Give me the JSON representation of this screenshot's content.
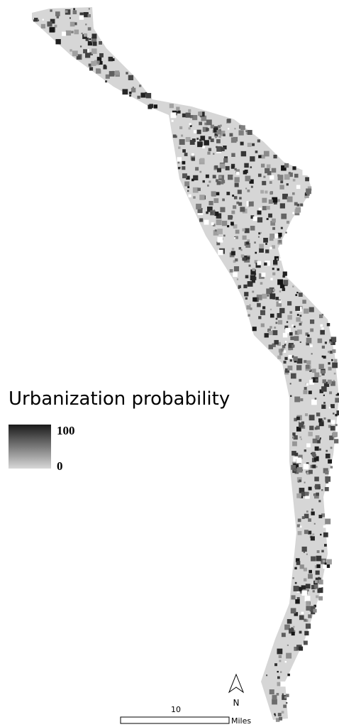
{
  "legend": {
    "title": "Urbanization probability",
    "max": "100",
    "min": "0"
  },
  "north_arrow": {
    "label": "N"
  },
  "scale_bar": {
    "distance": "10",
    "unit": "Miles"
  }
}
